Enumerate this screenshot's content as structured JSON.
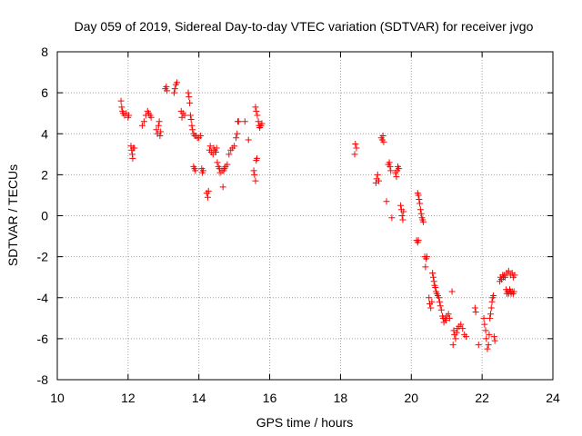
{
  "chart_data": {
    "type": "scatter",
    "title": "Day 059 of 2019, Sidereal Day-to-day VTEC variation (SDTVAR) for receiver jvgo",
    "xlabel": "GPS time / hours",
    "ylabel": "SDTVAR / TECUs",
    "xlim": [
      10,
      24
    ],
    "ylim": [
      -8,
      8
    ],
    "xticks": [
      "10",
      "12",
      "14",
      "16",
      "18",
      "20",
      "22",
      "24"
    ],
    "yticks": [
      "-8",
      "-6",
      "-4",
      "-2",
      "0",
      "2",
      "4",
      "6",
      "8"
    ],
    "grid": true,
    "marker": "+",
    "color": "#ff0000",
    "series": [
      {
        "name": "SDTVAR",
        "points": [
          [
            11.8,
            5.6
          ],
          [
            11.82,
            5.3
          ],
          [
            11.84,
            5.1
          ],
          [
            11.86,
            5.0
          ],
          [
            11.9,
            4.9
          ],
          [
            11.95,
            5.0
          ],
          [
            12.0,
            4.8
          ],
          [
            12.02,
            4.9
          ],
          [
            12.08,
            3.4
          ],
          [
            12.1,
            3.2
          ],
          [
            12.12,
            3.0
          ],
          [
            12.13,
            2.8
          ],
          [
            12.15,
            3.3
          ],
          [
            12.18,
            3.3
          ],
          [
            12.4,
            4.4
          ],
          [
            12.45,
            4.6
          ],
          [
            12.5,
            4.9
          ],
          [
            12.55,
            5.1
          ],
          [
            12.58,
            5.0
          ],
          [
            12.62,
            4.9
          ],
          [
            12.65,
            4.8
          ],
          [
            12.8,
            4.2
          ],
          [
            12.83,
            4.0
          ],
          [
            12.86,
            4.4
          ],
          [
            12.88,
            4.6
          ],
          [
            12.9,
            3.9
          ],
          [
            12.92,
            4.1
          ],
          [
            13.05,
            6.2
          ],
          [
            13.08,
            6.3
          ],
          [
            13.1,
            6.1
          ],
          [
            13.3,
            6.0
          ],
          [
            13.32,
            6.2
          ],
          [
            13.35,
            6.4
          ],
          [
            13.38,
            6.5
          ],
          [
            13.5,
            5.1
          ],
          [
            13.52,
            4.8
          ],
          [
            13.55,
            5.0
          ],
          [
            13.6,
            4.9
          ],
          [
            13.7,
            6.0
          ],
          [
            13.72,
            5.8
          ],
          [
            13.74,
            5.5
          ],
          [
            13.76,
            4.9
          ],
          [
            13.78,
            4.7
          ],
          [
            13.8,
            4.4
          ],
          [
            13.82,
            4.2
          ],
          [
            13.85,
            4.0
          ],
          [
            13.88,
            3.9
          ],
          [
            13.92,
            3.9
          ],
          [
            13.96,
            3.8
          ],
          [
            14.0,
            3.8
          ],
          [
            14.05,
            3.9
          ],
          [
            13.85,
            2.4
          ],
          [
            13.88,
            2.3
          ],
          [
            13.9,
            2.2
          ],
          [
            14.08,
            2.3
          ],
          [
            14.1,
            2.1
          ],
          [
            14.12,
            2.2
          ],
          [
            14.22,
            1.1
          ],
          [
            14.25,
            0.9
          ],
          [
            14.27,
            1.2
          ],
          [
            14.3,
            3.2
          ],
          [
            14.32,
            3.4
          ],
          [
            14.35,
            3.1
          ],
          [
            14.4,
            3.0
          ],
          [
            14.42,
            3.3
          ],
          [
            14.45,
            3.2
          ],
          [
            14.48,
            3.1
          ],
          [
            14.5,
            3.3
          ],
          [
            14.52,
            2.6
          ],
          [
            14.55,
            2.4
          ],
          [
            14.58,
            2.3
          ],
          [
            14.6,
            2.1
          ],
          [
            14.65,
            2.2
          ],
          [
            14.68,
            1.4
          ],
          [
            14.7,
            2.2
          ],
          [
            14.72,
            2.3
          ],
          [
            14.75,
            2.4
          ],
          [
            14.8,
            2.5
          ],
          [
            14.85,
            3.0
          ],
          [
            14.9,
            3.2
          ],
          [
            14.95,
            3.3
          ],
          [
            15.0,
            3.4
          ],
          [
            15.05,
            3.8
          ],
          [
            15.08,
            4.0
          ],
          [
            15.1,
            4.6
          ],
          [
            15.12,
            4.6
          ],
          [
            15.3,
            4.6
          ],
          [
            15.4,
            3.7
          ],
          [
            15.55,
            2.2
          ],
          [
            15.57,
            2.0
          ],
          [
            15.6,
            1.7
          ],
          [
            15.62,
            2.7
          ],
          [
            15.64,
            2.8
          ],
          [
            15.6,
            5.3
          ],
          [
            15.62,
            5.1
          ],
          [
            15.65,
            4.9
          ],
          [
            15.68,
            4.6
          ],
          [
            15.7,
            4.4
          ],
          [
            15.72,
            4.3
          ],
          [
            15.75,
            4.4
          ],
          [
            15.78,
            4.5
          ],
          [
            18.4,
            3.0
          ],
          [
            18.42,
            3.5
          ],
          [
            18.45,
            3.3
          ],
          [
            19.0,
            1.6
          ],
          [
            19.02,
            1.8
          ],
          [
            19.05,
            2.0
          ],
          [
            19.08,
            1.7
          ],
          [
            19.15,
            3.8
          ],
          [
            19.18,
            3.7
          ],
          [
            19.2,
            3.9
          ],
          [
            19.22,
            3.6
          ],
          [
            19.3,
            0.7
          ],
          [
            19.35,
            2.5
          ],
          [
            19.38,
            2.6
          ],
          [
            19.4,
            2.4
          ],
          [
            19.42,
            2.2
          ],
          [
            19.45,
            -0.1
          ],
          [
            19.55,
            2.1
          ],
          [
            19.58,
            1.9
          ],
          [
            19.6,
            2.2
          ],
          [
            19.62,
            2.4
          ],
          [
            19.65,
            2.3
          ],
          [
            19.7,
            0.5
          ],
          [
            19.72,
            0.3
          ],
          [
            19.74,
            0.0
          ],
          [
            19.76,
            -0.2
          ],
          [
            19.78,
            0.2
          ],
          [
            20.18,
            1.1
          ],
          [
            20.2,
            1.0
          ],
          [
            20.22,
            0.8
          ],
          [
            20.24,
            0.6
          ],
          [
            20.26,
            0.3
          ],
          [
            20.28,
            0.1
          ],
          [
            20.3,
            -0.1
          ],
          [
            20.32,
            -0.2
          ],
          [
            20.34,
            -0.3
          ],
          [
            20.15,
            -1.2
          ],
          [
            20.18,
            -1.3
          ],
          [
            20.2,
            -1.2
          ],
          [
            20.38,
            -2.0
          ],
          [
            20.4,
            -2.5
          ],
          [
            20.42,
            -2.1
          ],
          [
            20.44,
            -2.0
          ],
          [
            20.5,
            -4.0
          ],
          [
            20.52,
            -4.3
          ],
          [
            20.55,
            -4.5
          ],
          [
            20.58,
            -4.2
          ],
          [
            20.6,
            -2.8
          ],
          [
            20.62,
            -3.0
          ],
          [
            20.64,
            -3.2
          ],
          [
            20.66,
            -3.4
          ],
          [
            20.68,
            -3.5
          ],
          [
            20.7,
            -3.7
          ],
          [
            20.72,
            -3.8
          ],
          [
            20.75,
            -3.9
          ],
          [
            20.78,
            -4.0
          ],
          [
            20.8,
            -4.2
          ],
          [
            20.82,
            -4.4
          ],
          [
            20.85,
            -4.6
          ],
          [
            20.88,
            -4.9
          ],
          [
            20.9,
            -5.0
          ],
          [
            20.92,
            -5.2
          ],
          [
            20.95,
            -5.0
          ],
          [
            20.98,
            -5.1
          ],
          [
            21.0,
            -4.9
          ],
          [
            21.05,
            -4.8
          ],
          [
            21.08,
            -5.0
          ],
          [
            21.15,
            -3.7
          ],
          [
            21.2,
            -5.6
          ],
          [
            21.22,
            -5.8
          ],
          [
            21.25,
            -6.0
          ],
          [
            21.18,
            -6.3
          ],
          [
            21.28,
            -5.7
          ],
          [
            21.3,
            -5.5
          ],
          [
            21.35,
            -5.4
          ],
          [
            21.4,
            -5.3
          ],
          [
            21.45,
            -5.5
          ],
          [
            21.5,
            -5.8
          ],
          [
            21.55,
            -5.9
          ],
          [
            21.8,
            -4.5
          ],
          [
            21.82,
            -4.7
          ],
          [
            21.9,
            -6.3
          ],
          [
            22.05,
            -5.0
          ],
          [
            22.07,
            -5.3
          ],
          [
            22.1,
            -5.6
          ],
          [
            22.12,
            -6.0
          ],
          [
            22.15,
            -6.5
          ],
          [
            22.18,
            -6.3
          ],
          [
            22.2,
            -5.8
          ],
          [
            22.22,
            -5.0
          ],
          [
            22.24,
            -4.8
          ],
          [
            22.26,
            -4.5
          ],
          [
            22.28,
            -4.2
          ],
          [
            22.3,
            -4.0
          ],
          [
            22.32,
            -3.9
          ],
          [
            22.34,
            -5.9
          ],
          [
            22.36,
            -6.1
          ],
          [
            22.5,
            -3.2
          ],
          [
            22.52,
            -3.0
          ],
          [
            22.55,
            -3.1
          ],
          [
            22.58,
            -2.9
          ],
          [
            22.6,
            -3.0
          ],
          [
            22.62,
            -2.9
          ],
          [
            22.65,
            -3.0
          ],
          [
            22.68,
            -3.6
          ],
          [
            22.7,
            -3.8
          ],
          [
            22.72,
            -3.7
          ],
          [
            22.75,
            -3.8
          ],
          [
            22.78,
            -3.6
          ],
          [
            22.8,
            -3.7
          ],
          [
            22.82,
            -3.8
          ],
          [
            22.85,
            -3.7
          ],
          [
            22.88,
            -3.8
          ],
          [
            22.9,
            -3.7
          ],
          [
            22.7,
            -2.8
          ],
          [
            22.75,
            -2.7
          ],
          [
            22.8,
            -2.9
          ],
          [
            22.85,
            -2.8
          ],
          [
            22.88,
            -3.0
          ],
          [
            22.92,
            -2.9
          ]
        ]
      }
    ]
  }
}
